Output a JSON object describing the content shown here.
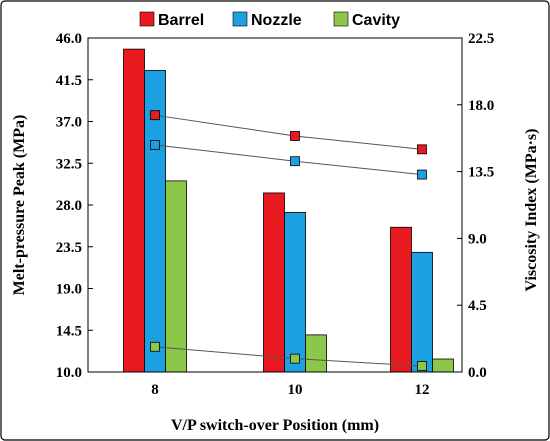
{
  "chart_data": {
    "type": "bar",
    "xlabel": "V/P switch-over Position (mm)",
    "ylabel": "Melt-pressure Peak (MPa)",
    "y2label": "Viscosity Index (MPa·s)",
    "categories": [
      "8",
      "10",
      "12"
    ],
    "ylim": [
      10.0,
      46.0
    ],
    "yticks": [
      "10.0",
      "14.5",
      "19.0",
      "23.5",
      "28.0",
      "32.5",
      "37.0",
      "41.5",
      "46.0"
    ],
    "y2lim": [
      0.0,
      22.5
    ],
    "y2ticks": [
      "0.0",
      "4.5",
      "9.0",
      "13.5",
      "18.0",
      "22.5"
    ],
    "legend_position": "top",
    "series": [
      {
        "name": "Barrel",
        "color": "#e8191f",
        "values": [
          44.8,
          29.3,
          25.6
        ]
      },
      {
        "name": "Nozzle",
        "color": "#1ba1e2",
        "values": [
          42.5,
          27.2,
          22.9
        ]
      },
      {
        "name": "Cavity",
        "color": "#8cc74a",
        "values": [
          30.6,
          14.0,
          11.4
        ]
      }
    ],
    "viscosity_series": [
      {
        "color": "#e8191f",
        "values": [
          17.3,
          15.9,
          15.0
        ]
      },
      {
        "color": "#1ba1e2",
        "values": [
          15.3,
          14.2,
          13.3
        ]
      },
      {
        "color": "#8cc74a",
        "values": [
          1.7,
          0.9,
          0.4
        ]
      }
    ]
  }
}
